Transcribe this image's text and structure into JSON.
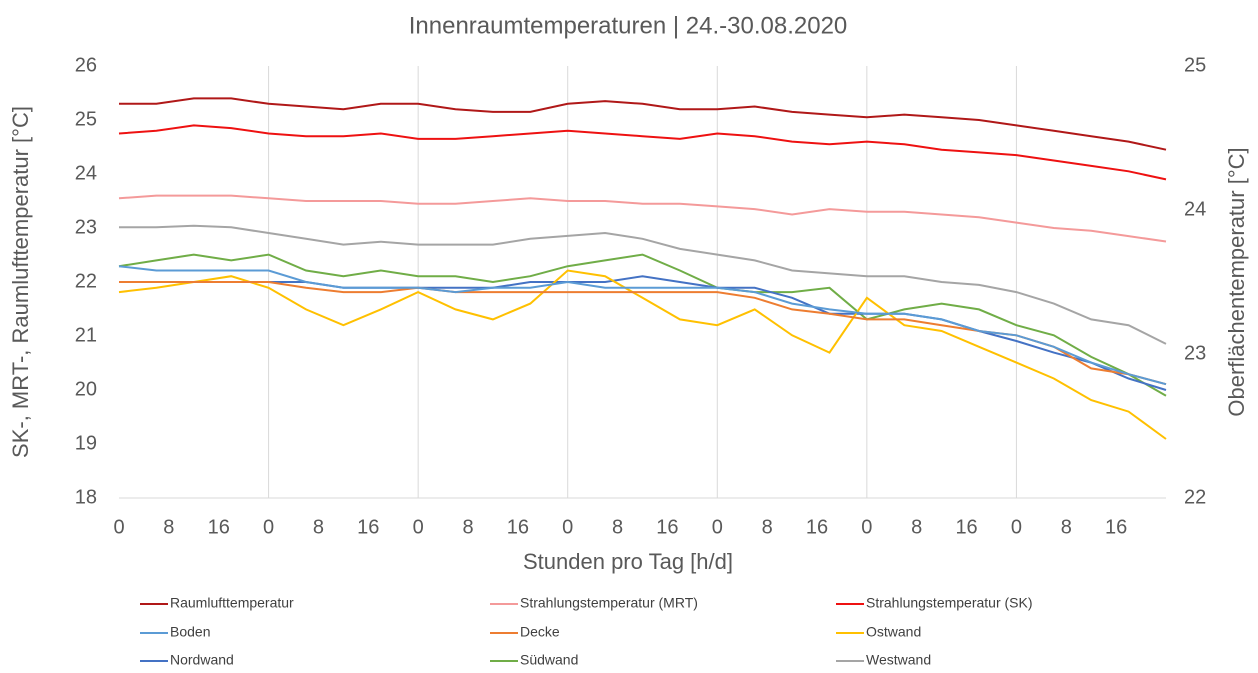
{
  "chart_data": {
    "type": "line",
    "title": "Innenraumtemperaturen | 24.-30.08.2020",
    "xlabel": "Stunden pro Tag [h/d]",
    "ylabel": "SK-, MRT-, Raumlufttemperatur [°C]",
    "y2label": "Oberflächentemperatur [°C]",
    "x": [
      0,
      6,
      12,
      18,
      24,
      30,
      36,
      42,
      48,
      54,
      60,
      66,
      72,
      78,
      84,
      90,
      96,
      102,
      108,
      114,
      120,
      126,
      132,
      138,
      144,
      150,
      156,
      162,
      168
    ],
    "xlim": [
      0,
      168
    ],
    "xticks": [
      {
        "value": 0,
        "label": "0"
      },
      {
        "value": 8,
        "label": "8"
      },
      {
        "value": 16,
        "label": "16"
      },
      {
        "value": 24,
        "label": "0"
      },
      {
        "value": 32,
        "label": "8"
      },
      {
        "value": 40,
        "label": "16"
      },
      {
        "value": 48,
        "label": "0"
      },
      {
        "value": 56,
        "label": "8"
      },
      {
        "value": 64,
        "label": "16"
      },
      {
        "value": 72,
        "label": "0"
      },
      {
        "value": 80,
        "label": "8"
      },
      {
        "value": 88,
        "label": "16"
      },
      {
        "value": 96,
        "label": "0"
      },
      {
        "value": 104,
        "label": "8"
      },
      {
        "value": 112,
        "label": "16"
      },
      {
        "value": 120,
        "label": "0"
      },
      {
        "value": 128,
        "label": "8"
      },
      {
        "value": 136,
        "label": "16"
      },
      {
        "value": 144,
        "label": "0"
      },
      {
        "value": 152,
        "label": "8"
      },
      {
        "value": 160,
        "label": "16"
      }
    ],
    "ylim": [
      18,
      26
    ],
    "yticks": [
      18,
      19,
      20,
      21,
      22,
      23,
      24,
      25,
      26
    ],
    "y2lim": [
      22,
      25
    ],
    "y2ticks": [
      22,
      23,
      24,
      25
    ],
    "series": [
      {
        "name": "Raumlufttemperatur",
        "color": "#b01818",
        "values": [
          25.3,
          25.3,
          25.4,
          25.4,
          25.3,
          25.25,
          25.2,
          25.3,
          25.3,
          25.2,
          25.15,
          25.15,
          25.3,
          25.35,
          25.3,
          25.2,
          25.2,
          25.25,
          25.15,
          25.1,
          25.05,
          25.1,
          25.05,
          25.0,
          24.9,
          24.8,
          24.7,
          24.6,
          24.45
        ]
      },
      {
        "name": "Strahlungstemperatur (MRT)",
        "color": "#f49a9a",
        "values": [
          23.55,
          23.6,
          23.6,
          23.6,
          23.55,
          23.5,
          23.5,
          23.5,
          23.45,
          23.45,
          23.5,
          23.55,
          23.5,
          23.5,
          23.45,
          23.45,
          23.4,
          23.35,
          23.25,
          23.35,
          23.3,
          23.3,
          23.25,
          23.2,
          23.1,
          23.0,
          22.95,
          22.85,
          22.75
        ]
      },
      {
        "name": "Strahlungstemperatur (SK)",
        "color": "#ee1111",
        "values": [
          24.75,
          24.8,
          24.9,
          24.85,
          24.75,
          24.7,
          24.7,
          24.75,
          24.65,
          24.65,
          24.7,
          24.75,
          24.8,
          24.75,
          24.7,
          24.65,
          24.75,
          24.7,
          24.6,
          24.55,
          24.6,
          24.55,
          24.45,
          24.4,
          24.35,
          24.25,
          24.15,
          24.05,
          23.9
        ]
      },
      {
        "name": "Boden",
        "color": "#5b9bd5",
        "axis": "y2",
        "values": [
          23.61,
          23.58,
          23.58,
          23.58,
          23.58,
          23.5,
          23.46,
          23.46,
          23.46,
          23.43,
          23.46,
          23.46,
          23.5,
          23.46,
          23.46,
          23.46,
          23.46,
          23.43,
          23.35,
          23.31,
          23.28,
          23.28,
          23.24,
          23.16,
          23.13,
          23.05,
          22.94,
          22.86,
          22.79
        ]
      },
      {
        "name": "Decke",
        "color": "#ed7d31",
        "axis": "y2",
        "values": [
          23.5,
          23.5,
          23.5,
          23.5,
          23.5,
          23.46,
          23.43,
          23.43,
          23.46,
          23.43,
          23.43,
          23.43,
          23.43,
          23.43,
          23.43,
          23.43,
          23.43,
          23.39,
          23.31,
          23.28,
          23.24,
          23.24,
          23.2,
          23.16,
          23.13,
          23.05,
          22.9,
          22.86,
          22.79
        ]
      },
      {
        "name": "Ostwand",
        "color": "#ffc000",
        "axis": "y2",
        "values": [
          23.43,
          23.46,
          23.5,
          23.54,
          23.46,
          23.31,
          23.2,
          23.31,
          23.43,
          23.31,
          23.24,
          23.35,
          23.58,
          23.54,
          23.39,
          23.24,
          23.2,
          23.31,
          23.13,
          23.01,
          23.39,
          23.2,
          23.16,
          23.05,
          22.94,
          22.83,
          22.68,
          22.6,
          22.41
        ]
      },
      {
        "name": "Nordwand",
        "color": "#4472c4",
        "axis": "y2",
        "values": [
          23.5,
          23.5,
          23.5,
          23.5,
          23.5,
          23.5,
          23.46,
          23.46,
          23.46,
          23.46,
          23.46,
          23.5,
          23.5,
          23.5,
          23.54,
          23.5,
          23.46,
          23.46,
          23.39,
          23.28,
          23.28,
          23.28,
          23.24,
          23.16,
          23.09,
          23.01,
          22.94,
          22.83,
          22.75
        ]
      },
      {
        "name": "Südwand",
        "color": "#70ad47",
        "axis": "y2",
        "values": [
          23.61,
          23.65,
          23.69,
          23.65,
          23.69,
          23.58,
          23.54,
          23.58,
          23.54,
          23.54,
          23.5,
          23.54,
          23.61,
          23.65,
          23.69,
          23.58,
          23.46,
          23.43,
          23.43,
          23.46,
          23.24,
          23.31,
          23.35,
          23.31,
          23.2,
          23.13,
          22.98,
          22.86,
          22.71
        ]
      },
      {
        "name": "Westwand",
        "color": "#a5a5a5",
        "axis": "y2",
        "values": [
          23.88,
          23.88,
          23.89,
          23.88,
          23.84,
          23.8,
          23.76,
          23.78,
          23.76,
          23.76,
          23.76,
          23.8,
          23.82,
          23.84,
          23.8,
          23.73,
          23.69,
          23.65,
          23.58,
          23.56,
          23.54,
          23.54,
          23.5,
          23.48,
          23.43,
          23.35,
          23.24,
          23.2,
          23.07
        ]
      }
    ]
  }
}
